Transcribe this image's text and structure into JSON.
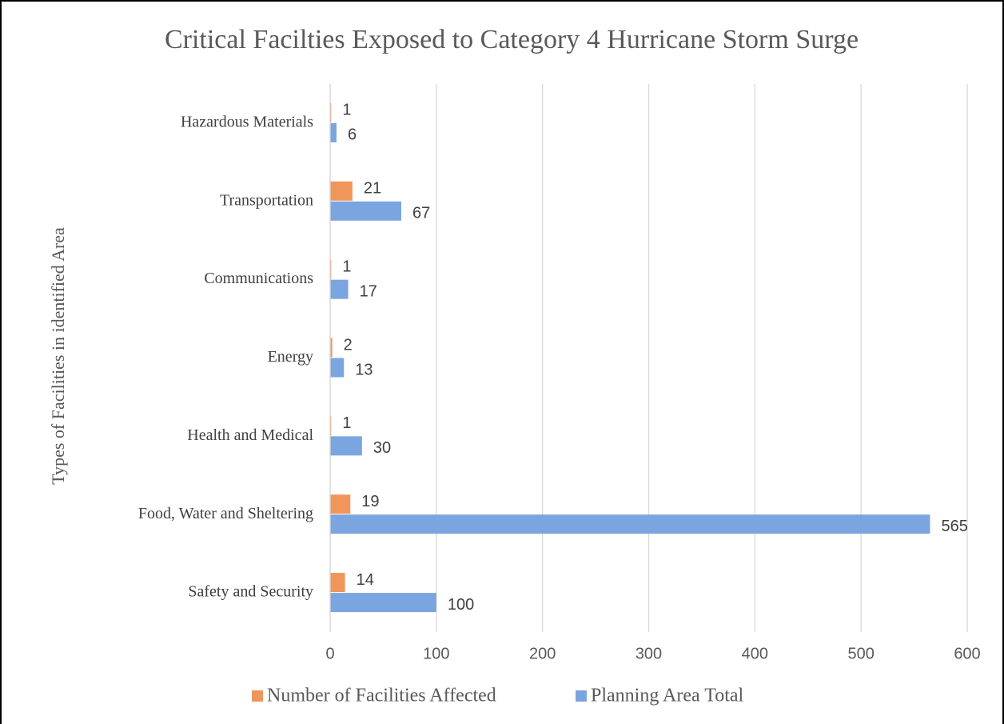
{
  "chart_data": {
    "type": "hbar",
    "title": "Critical Facilties Exposed to Category 4 Hurricane Storm Surge",
    "y_label": "Types of Facilities in identified Area",
    "categories": [
      "Hazardous Materials",
      "Transportation",
      "Communications",
      "Energy",
      "Health and Medical",
      "Food, Water and Sheltering",
      "Safety and Security"
    ],
    "series": [
      {
        "name": "Number of Facilities Affected",
        "color": "#f0965a",
        "values": [
          1,
          21,
          1,
          2,
          1,
          19,
          14
        ]
      },
      {
        "name": "Planning Area Total",
        "color": "#7ba5e0",
        "values": [
          6,
          67,
          17,
          13,
          30,
          565,
          100
        ]
      }
    ],
    "xlim": [
      0,
      600
    ],
    "xticks": [
      0,
      100,
      200,
      300,
      400,
      500,
      600
    ],
    "grid": true,
    "legend": "bottom"
  }
}
